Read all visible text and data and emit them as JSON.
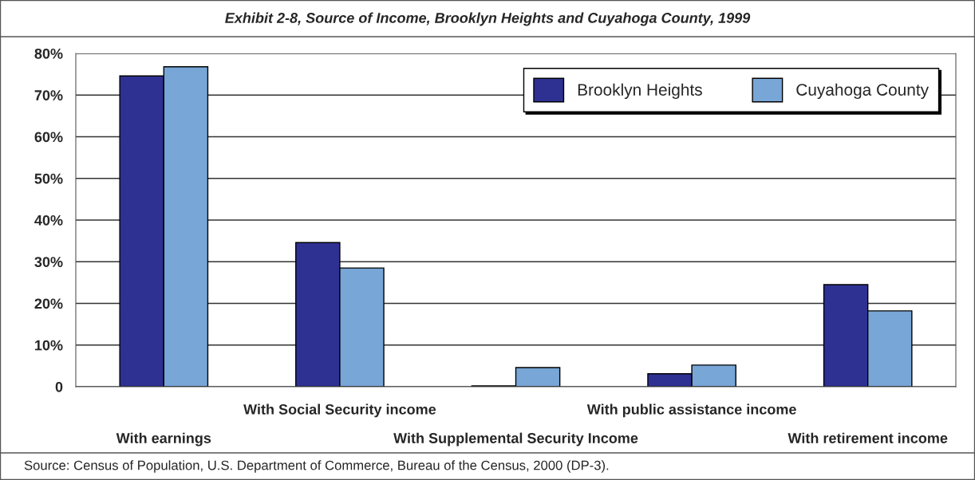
{
  "chart_data": {
    "type": "bar",
    "title": "Exhibit 2-8, Source of Income, Brooklyn Heights and Cuyahoga County, 1999",
    "categories": [
      "With earnings",
      "With Social Security income",
      "With Supplemental Security Income",
      "With public assistance income",
      "With retirement income"
    ],
    "series": [
      {
        "name": "Brooklyn Heights",
        "color": "#2e3192",
        "values": [
          74.6,
          34.6,
          0.2,
          3.1,
          24.5
        ]
      },
      {
        "name": "Cuyahoga County",
        "color": "#78a6d6",
        "values": [
          76.8,
          28.5,
          4.6,
          5.2,
          18.2
        ]
      }
    ],
    "ylim": [
      0,
      80
    ],
    "yticks": [
      {
        "value": 0,
        "label": "0"
      },
      {
        "value": 10,
        "label": "10%"
      },
      {
        "value": 20,
        "label": "20%"
      },
      {
        "value": 30,
        "label": "30%"
      },
      {
        "value": 40,
        "label": "40%"
      },
      {
        "value": 50,
        "label": "50%"
      },
      {
        "value": 60,
        "label": "60%"
      },
      {
        "value": 70,
        "label": "70%"
      },
      {
        "value": 80,
        "label": "80%"
      }
    ],
    "grid": "y",
    "legend": "top right",
    "annotations": [
      "Source: Census of Population, U.S. Department of Commerce, Bureau of the Census, 2000 (DP-3)."
    ]
  }
}
